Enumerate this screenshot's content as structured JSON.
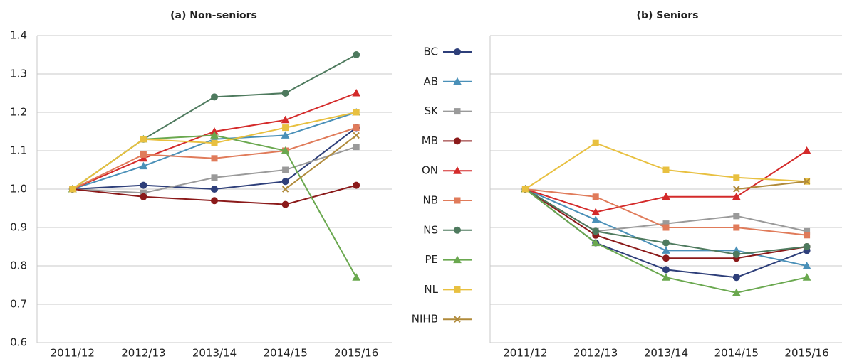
{
  "chart_data": [
    {
      "type": "line",
      "title": "(a) Non-seniors",
      "categories": [
        "2011/12",
        "2012/13",
        "2013/14",
        "2014/15",
        "2015/16"
      ],
      "ylim": [
        0.6,
        1.4
      ],
      "yticks": [
        {
          "value": 0.6,
          "label": "0.6"
        },
        {
          "value": 0.7,
          "label": "0.7"
        },
        {
          "value": 0.8,
          "label": "0.8"
        },
        {
          "value": 0.9,
          "label": "0.9"
        },
        {
          "value": 1,
          "label": "1.0"
        },
        {
          "value": 1.1,
          "label": "1.1"
        },
        {
          "value": 1.2,
          "label": "1.2"
        },
        {
          "value": 1.3,
          "label": "1.3"
        },
        {
          "value": 1.4,
          "label": "1.4"
        }
      ],
      "series": [
        {
          "name": "BC",
          "color": "#2e3f7a",
          "marker": "circle",
          "values": [
            1.0,
            1.01,
            1.0,
            1.02,
            1.16
          ]
        },
        {
          "name": "AB",
          "color": "#4a90b8",
          "marker": "triangle",
          "values": [
            1.0,
            1.06,
            1.13,
            1.14,
            1.2
          ]
        },
        {
          "name": "SK",
          "color": "#9a9a9a",
          "marker": "square",
          "values": [
            1.0,
            0.99,
            1.03,
            1.05,
            1.11
          ]
        },
        {
          "name": "MB",
          "color": "#8b1a1a",
          "marker": "circle",
          "values": [
            1.0,
            0.98,
            0.97,
            0.96,
            1.01
          ]
        },
        {
          "name": "ON",
          "color": "#d42a2a",
          "marker": "triangle",
          "values": [
            1.0,
            1.08,
            1.15,
            1.18,
            1.25
          ]
        },
        {
          "name": "NB",
          "color": "#e07b5a",
          "marker": "square",
          "values": [
            1.0,
            1.09,
            1.08,
            1.1,
            1.16
          ]
        },
        {
          "name": "NS",
          "color": "#4e7a5e",
          "marker": "circle",
          "values": [
            1.0,
            1.13,
            1.24,
            1.25,
            1.35
          ]
        },
        {
          "name": "PE",
          "color": "#6aa84f",
          "marker": "triangle",
          "values": [
            1.0,
            1.13,
            1.14,
            1.1,
            0.77
          ]
        },
        {
          "name": "NL",
          "color": "#e8c040",
          "marker": "square",
          "values": [
            1.0,
            1.13,
            1.12,
            1.16,
            1.2
          ]
        },
        {
          "name": "NIHB",
          "color": "#b08a3a",
          "marker": "x",
          "values": [
            null,
            null,
            null,
            1.0,
            1.14
          ]
        }
      ]
    },
    {
      "type": "line",
      "title": "(b) Seniors",
      "categories": [
        "2011/12",
        "2012/13",
        "2013/14",
        "2014/15",
        "2015/16"
      ],
      "ylim": [
        0.6,
        1.4
      ],
      "yticks": [
        0.6,
        0.7,
        0.8,
        0.9,
        1,
        1.1,
        1.2,
        1.3,
        1.4
      ],
      "series": [
        {
          "color": "#2e3f7a",
          "marker": "circle",
          "values": [
            1.0,
            0.86,
            0.79,
            0.77,
            0.84
          ]
        },
        {
          "color": "#4a90b8",
          "marker": "triangle",
          "values": [
            1.0,
            0.92,
            0.84,
            0.84,
            0.8
          ]
        },
        {
          "color": "#9a9a9a",
          "marker": "square",
          "values": [
            1.0,
            0.89,
            0.91,
            0.93,
            0.89
          ]
        },
        {
          "color": "#8b1a1a",
          "marker": "circle",
          "values": [
            1.0,
            0.88,
            0.82,
            0.82,
            0.85
          ]
        },
        {
          "color": "#d42a2a",
          "marker": "triangle",
          "values": [
            1.0,
            0.94,
            0.98,
            0.98,
            1.1
          ]
        },
        {
          "color": "#e07b5a",
          "marker": "square",
          "values": [
            1.0,
            0.98,
            0.9,
            0.9,
            0.88
          ]
        },
        {
          "color": "#4e7a5e",
          "marker": "circle",
          "values": [
            1.0,
            0.89,
            0.86,
            0.83,
            0.85
          ]
        },
        {
          "color": "#6aa84f",
          "marker": "triangle",
          "values": [
            1.0,
            0.86,
            0.77,
            0.73,
            0.77
          ]
        },
        {
          "color": "#e8c040",
          "marker": "square",
          "values": [
            1.0,
            1.12,
            1.05,
            1.03,
            1.02
          ]
        },
        {
          "color": "#b08a3a",
          "marker": "x",
          "values": [
            null,
            null,
            null,
            1.0,
            1.02
          ]
        }
      ]
    }
  ]
}
